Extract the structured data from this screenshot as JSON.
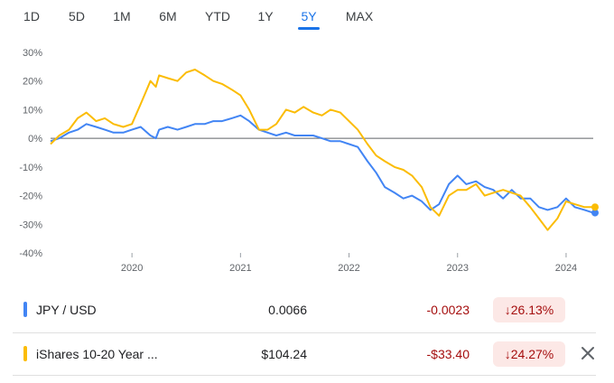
{
  "range_tabs": [
    {
      "label": "1D"
    },
    {
      "label": "5D"
    },
    {
      "label": "1M"
    },
    {
      "label": "6M"
    },
    {
      "label": "YTD"
    },
    {
      "label": "1Y"
    },
    {
      "label": "5Y",
      "active": true
    },
    {
      "label": "MAX"
    }
  ],
  "colors": {
    "accent": "#1a73e8",
    "series_blue": "#4285f4",
    "series_yellow": "#fbbc04",
    "negative": "#a50e0e",
    "negative_bg": "#fce8e6"
  },
  "chart_data": {
    "type": "line",
    "y_tick_labels": [
      "30%",
      "20%",
      "10%",
      "0%",
      "-10%",
      "-20%",
      "-30%",
      "-40%"
    ],
    "x_tick_labels": [
      "2020",
      "2021",
      "2022",
      "2023",
      "2024"
    ],
    "ylim": [
      -40,
      30
    ],
    "xlim": [
      2019.25,
      2024.25
    ],
    "grid": false,
    "zero_line": true,
    "series": [
      {
        "name": "JPY / USD",
        "color": "#4285f4",
        "points": [
          [
            2019.25,
            -1
          ],
          [
            2019.33,
            0
          ],
          [
            2019.42,
            2
          ],
          [
            2019.5,
            3
          ],
          [
            2019.58,
            5
          ],
          [
            2019.67,
            4
          ],
          [
            2019.75,
            3
          ],
          [
            2019.83,
            2
          ],
          [
            2019.92,
            2
          ],
          [
            2020.0,
            3
          ],
          [
            2020.08,
            4
          ],
          [
            2020.17,
            1
          ],
          [
            2020.22,
            0
          ],
          [
            2020.25,
            3
          ],
          [
            2020.33,
            4
          ],
          [
            2020.42,
            3
          ],
          [
            2020.5,
            4
          ],
          [
            2020.58,
            5
          ],
          [
            2020.67,
            5
          ],
          [
            2020.75,
            6
          ],
          [
            2020.83,
            6
          ],
          [
            2020.92,
            7
          ],
          [
            2021.0,
            8
          ],
          [
            2021.08,
            6
          ],
          [
            2021.17,
            3
          ],
          [
            2021.25,
            2
          ],
          [
            2021.33,
            1
          ],
          [
            2021.42,
            2
          ],
          [
            2021.5,
            1
          ],
          [
            2021.58,
            1
          ],
          [
            2021.67,
            1
          ],
          [
            2021.75,
            0
          ],
          [
            2021.83,
            -1
          ],
          [
            2021.92,
            -1
          ],
          [
            2022.0,
            -2
          ],
          [
            2022.08,
            -3
          ],
          [
            2022.17,
            -8
          ],
          [
            2022.25,
            -12
          ],
          [
            2022.33,
            -17
          ],
          [
            2022.42,
            -19
          ],
          [
            2022.5,
            -21
          ],
          [
            2022.58,
            -20
          ],
          [
            2022.67,
            -22
          ],
          [
            2022.75,
            -25
          ],
          [
            2022.83,
            -23
          ],
          [
            2022.92,
            -16
          ],
          [
            2023.0,
            -13
          ],
          [
            2023.08,
            -16
          ],
          [
            2023.17,
            -15
          ],
          [
            2023.25,
            -17
          ],
          [
            2023.33,
            -18
          ],
          [
            2023.42,
            -21
          ],
          [
            2023.5,
            -18
          ],
          [
            2023.58,
            -21
          ],
          [
            2023.67,
            -21
          ],
          [
            2023.75,
            -24
          ],
          [
            2023.83,
            -25
          ],
          [
            2023.92,
            -24
          ],
          [
            2024.0,
            -21
          ],
          [
            2024.08,
            -24
          ],
          [
            2024.17,
            -25
          ],
          [
            2024.25,
            -26
          ]
        ]
      },
      {
        "name": "iShares 10-20 Year ...",
        "color": "#fbbc04",
        "points": [
          [
            2019.25,
            -2
          ],
          [
            2019.33,
            1
          ],
          [
            2019.42,
            3
          ],
          [
            2019.5,
            7
          ],
          [
            2019.58,
            9
          ],
          [
            2019.67,
            6
          ],
          [
            2019.75,
            7
          ],
          [
            2019.83,
            5
          ],
          [
            2019.92,
            4
          ],
          [
            2020.0,
            5
          ],
          [
            2020.08,
            12
          ],
          [
            2020.17,
            20
          ],
          [
            2020.22,
            18
          ],
          [
            2020.25,
            22
          ],
          [
            2020.33,
            21
          ],
          [
            2020.42,
            20
          ],
          [
            2020.5,
            23
          ],
          [
            2020.58,
            24
          ],
          [
            2020.67,
            22
          ],
          [
            2020.75,
            20
          ],
          [
            2020.83,
            19
          ],
          [
            2020.92,
            17
          ],
          [
            2021.0,
            15
          ],
          [
            2021.08,
            10
          ],
          [
            2021.17,
            3
          ],
          [
            2021.25,
            3
          ],
          [
            2021.33,
            5
          ],
          [
            2021.42,
            10
          ],
          [
            2021.5,
            9
          ],
          [
            2021.58,
            11
          ],
          [
            2021.67,
            9
          ],
          [
            2021.75,
            8
          ],
          [
            2021.83,
            10
          ],
          [
            2021.92,
            9
          ],
          [
            2022.0,
            6
          ],
          [
            2022.08,
            3
          ],
          [
            2022.17,
            -2
          ],
          [
            2022.25,
            -6
          ],
          [
            2022.33,
            -8
          ],
          [
            2022.42,
            -10
          ],
          [
            2022.5,
            -11
          ],
          [
            2022.58,
            -13
          ],
          [
            2022.67,
            -17
          ],
          [
            2022.75,
            -24
          ],
          [
            2022.83,
            -27
          ],
          [
            2022.92,
            -20
          ],
          [
            2023.0,
            -18
          ],
          [
            2023.08,
            -18
          ],
          [
            2023.17,
            -16
          ],
          [
            2023.25,
            -20
          ],
          [
            2023.33,
            -19
          ],
          [
            2023.42,
            -18
          ],
          [
            2023.5,
            -19
          ],
          [
            2023.58,
            -20
          ],
          [
            2023.67,
            -24
          ],
          [
            2023.75,
            -28
          ],
          [
            2023.83,
            -32
          ],
          [
            2023.92,
            -28
          ],
          [
            2024.0,
            -22
          ],
          [
            2024.08,
            -23
          ],
          [
            2024.17,
            -24
          ],
          [
            2024.25,
            -24
          ]
        ]
      }
    ]
  },
  "rows": [
    {
      "color": "#4285f4",
      "name": "JPY / USD",
      "price": "0.0066",
      "change": "-0.0023",
      "pct": "26.13%"
    },
    {
      "color": "#fbbc04",
      "name": "iShares 10-20 Year ...",
      "price": "$104.24",
      "change": "-$33.40",
      "pct": "24.27%"
    }
  ]
}
